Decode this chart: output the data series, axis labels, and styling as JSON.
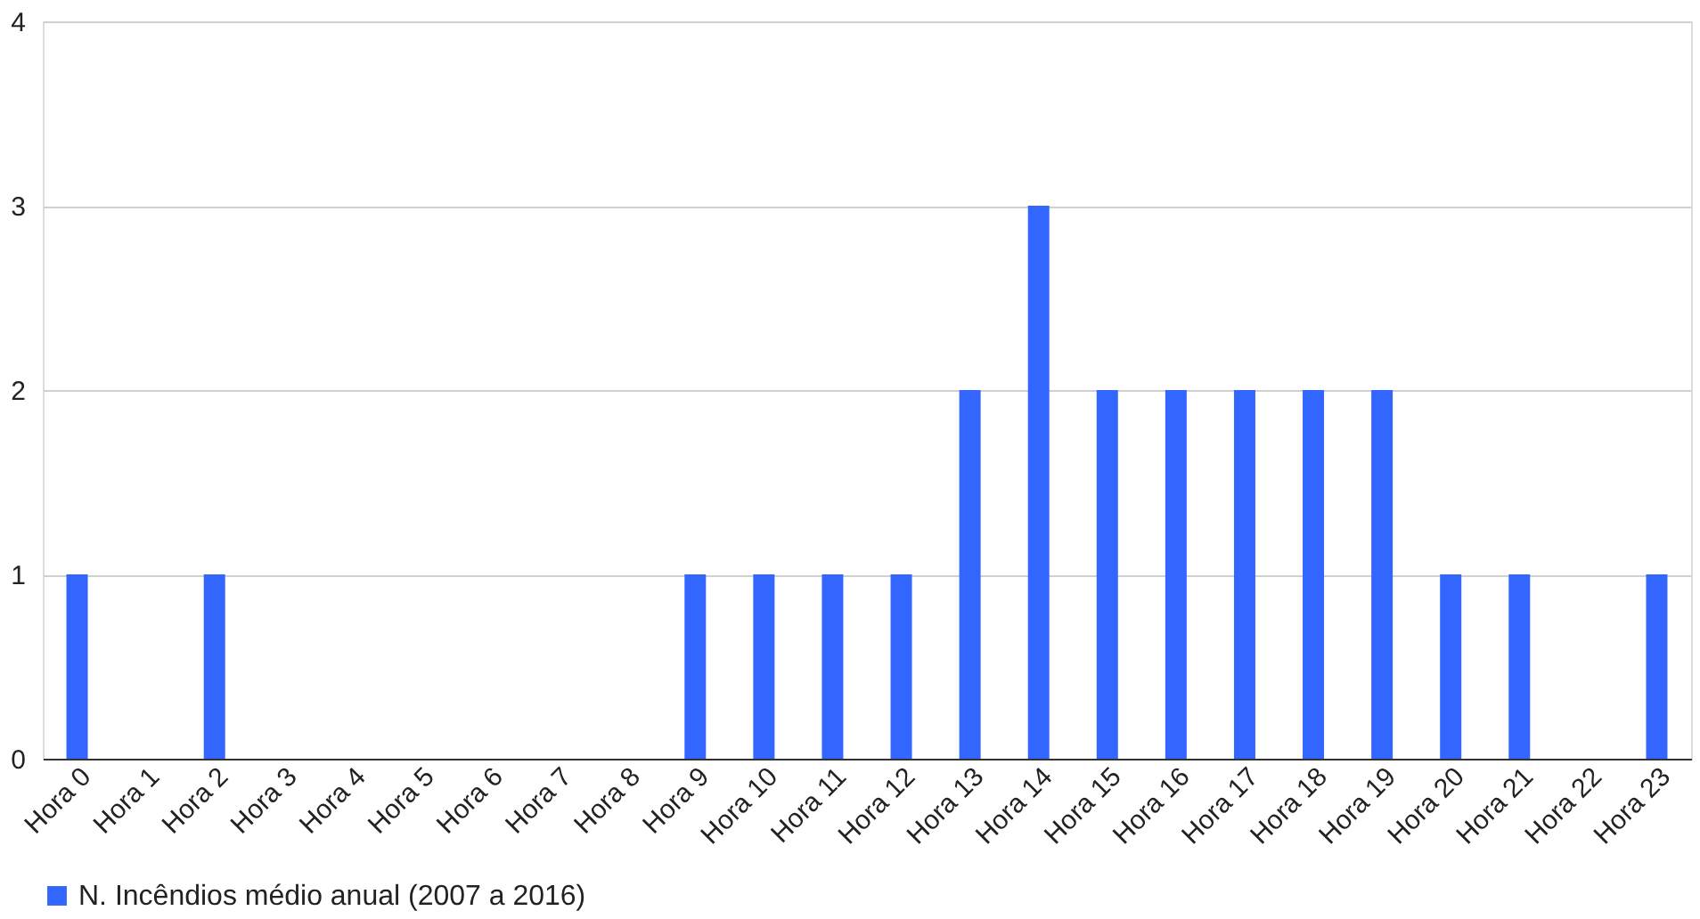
{
  "chart_data": {
    "type": "bar",
    "categories": [
      "Hora 0",
      "Hora 1",
      "Hora 2",
      "Hora 3",
      "Hora 4",
      "Hora 5",
      "Hora 6",
      "Hora 7",
      "Hora 8",
      "Hora 9",
      "Hora 10",
      "Hora 11",
      "Hora 12",
      "Hora 13",
      "Hora 14",
      "Hora 15",
      "Hora 16",
      "Hora 17",
      "Hora 18",
      "Hora 19",
      "Hora 20",
      "Hora 21",
      "Hora 22",
      "Hora 23"
    ],
    "series": [
      {
        "name": "N. Incêndios médio anual (2007 a 2016)",
        "color": "#3366ff",
        "values": [
          1,
          0,
          1,
          0,
          0,
          0,
          0,
          0,
          0,
          1,
          1,
          1,
          1,
          2,
          3,
          2,
          2,
          2,
          2,
          2,
          1,
          1,
          0,
          1
        ]
      }
    ],
    "ylim": [
      0,
      4
    ],
    "yticks": [
      0,
      1,
      2,
      3,
      4
    ],
    "grid": "y",
    "legend": "bottom"
  }
}
